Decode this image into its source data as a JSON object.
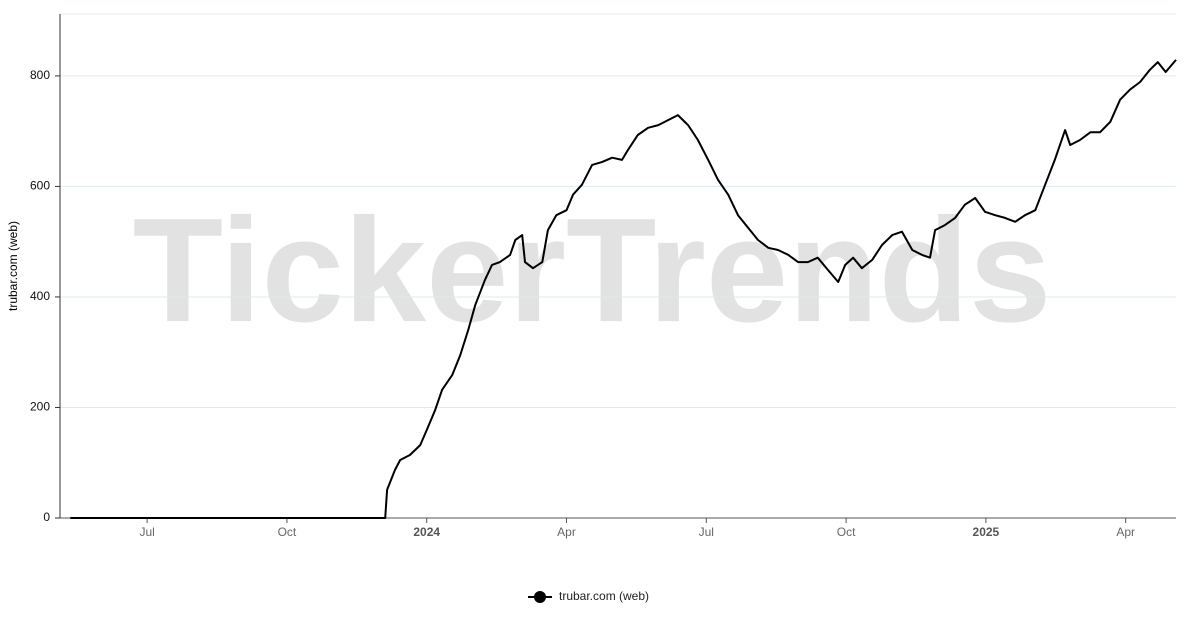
{
  "chart_data": {
    "type": "line",
    "watermark": "TickerTrends",
    "y_label": "trubar.com  (web)",
    "x": [
      -1.65,
      5.11,
      5.15,
      5.32,
      5.43,
      5.64,
      5.86,
      6.0,
      6.18,
      6.33,
      6.55,
      6.72,
      6.89,
      7.04,
      7.25,
      7.4,
      7.57,
      7.79,
      7.9,
      8.05,
      8.11,
      8.28,
      8.48,
      8.6,
      8.78,
      9.0,
      9.14,
      9.33,
      9.55,
      9.76,
      9.98,
      10.19,
      10.32,
      10.53,
      10.75,
      10.97,
      11.18,
      11.39,
      11.61,
      11.82,
      12.04,
      12.25,
      12.47,
      12.68,
      12.9,
      13.11,
      13.33,
      13.54,
      13.76,
      13.97,
      14.18,
      14.39,
      14.61,
      14.83,
      14.98,
      15.15,
      15.34,
      15.56,
      15.77,
      15.99,
      16.2,
      16.42,
      16.63,
      16.8,
      16.91,
      17.12,
      17.34,
      17.55,
      17.77,
      17.98,
      18.2,
      18.41,
      18.63,
      18.84,
      19.06,
      19.27,
      19.48,
      19.7,
      19.81,
      20.02,
      20.24,
      20.45,
      20.67,
      20.88,
      21.09,
      21.31,
      21.52,
      21.69,
      21.86,
      22.08
    ],
    "series": [
      {
        "name": "trubar.com  (web)",
        "color": "#000000",
        "values": [
          0,
          0,
          51,
          87,
          105,
          114,
          132,
          159,
          195,
          232,
          259,
          295,
          340,
          385,
          431,
          458,
          463,
          476,
          503,
          512,
          463,
          452,
          463,
          521,
          548,
          557,
          585,
          603,
          639,
          644,
          652,
          648,
          666,
          693,
          706,
          711,
          720,
          729,
          711,
          684,
          648,
          612,
          585,
          548,
          525,
          503,
          489,
          485,
          476,
          463,
          463,
          471,
          449,
          427,
          458,
          471,
          452,
          467,
          494,
          512,
          518,
          485,
          476,
          471,
          521,
          530,
          543,
          567,
          579,
          554,
          548,
          543,
          536,
          548,
          557,
          603,
          648,
          702,
          675,
          684,
          698,
          698,
          717,
          757,
          775,
          789,
          811,
          825,
          807,
          829
        ]
      }
    ],
    "xlim": [
      -1.87,
      22.08
    ],
    "xticks": [
      {
        "value": 0,
        "label": "Jul"
      },
      {
        "value": 3,
        "label": "Oct"
      },
      {
        "value": 6,
        "label": "2024"
      },
      {
        "value": 9,
        "label": "Apr"
      },
      {
        "value": 12,
        "label": "Jul"
      },
      {
        "value": 15,
        "label": "Oct"
      },
      {
        "value": 18,
        "label": "2025"
      },
      {
        "value": 21,
        "label": "Apr"
      }
    ],
    "ylim": [
      0,
      912
    ],
    "yticks": [
      0,
      200,
      400,
      600,
      800
    ],
    "grid": true
  }
}
